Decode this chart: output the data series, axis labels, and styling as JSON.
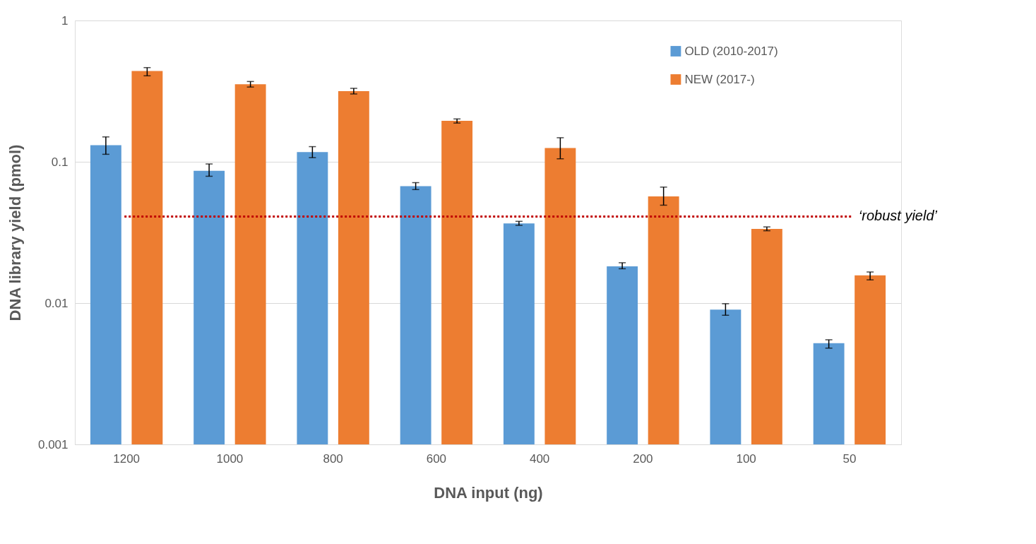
{
  "chart_data": {
    "type": "bar",
    "xlabel": "DNA input (ng)",
    "ylabel": "DNA library yield (pmol)",
    "categories": [
      "1200",
      "1000",
      "800",
      "600",
      "400",
      "200",
      "100",
      "50"
    ],
    "series": [
      {
        "name": "OLD (2010-2017)",
        "color": "#5b9bd5",
        "values": [
          0.131,
          0.0863,
          0.117,
          0.0673,
          0.0366,
          0.0182,
          0.009,
          0.0052
        ],
        "errors": [
          [
            0.113,
            0.15
          ],
          [
            0.079,
            0.0965
          ],
          [
            0.107,
            0.128
          ],
          [
            0.0636,
            0.0712
          ],
          [
            0.0355,
            0.0379
          ],
          [
            0.0175,
            0.0193
          ],
          [
            0.0082,
            0.0099
          ],
          [
            0.0048,
            0.0055
          ]
        ]
      },
      {
        "name": "NEW (2017-)",
        "color": "#ed7d31",
        "values": [
          0.439,
          0.354,
          0.316,
          0.195,
          0.125,
          0.0569,
          0.0335,
          0.0157
        ],
        "errors": [
          [
            0.406,
            0.464
          ],
          [
            0.338,
            0.37
          ],
          [
            0.302,
            0.331
          ],
          [
            0.188,
            0.201
          ],
          [
            0.105,
            0.148
          ],
          [
            0.0493,
            0.0662
          ],
          [
            0.0325,
            0.0346
          ],
          [
            0.0146,
            0.0166
          ]
        ]
      }
    ],
    "ylim": [
      0.001,
      1
    ],
    "yticks": [
      0.001,
      0.01,
      0.1,
      1
    ],
    "log": true,
    "grid": "y",
    "legend": "top right",
    "ref_lines": [
      {
        "axis": "y",
        "value": 0.041,
        "label": "‘robust yield’",
        "color": "#c00000",
        "line_style": "dotted"
      }
    ]
  }
}
